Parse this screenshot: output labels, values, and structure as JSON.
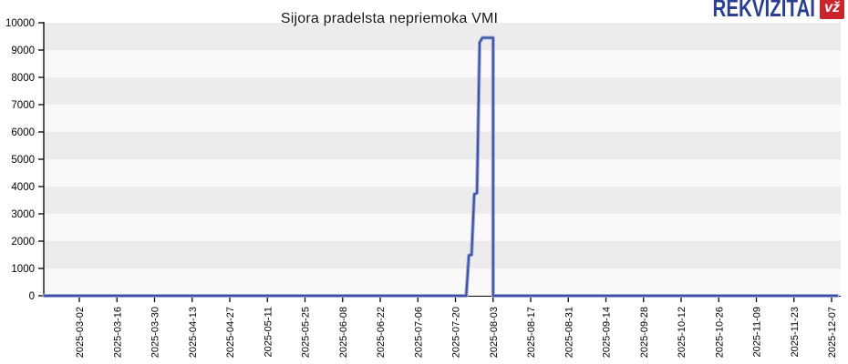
{
  "logo": {
    "text": "REKVIZITAI",
    "badge": "vž",
    "text_color": "#2a3f93",
    "badge_bg": "#c9252b",
    "badge_text_color": "#ffffff"
  },
  "chart_data": {
    "type": "line",
    "title": "Sijora pradelsta nepriemoka VMI",
    "xlabel": "",
    "ylabel": "",
    "ylim": [
      0,
      10000
    ],
    "y_ticks": [
      0,
      1000,
      2000,
      3000,
      4000,
      5000,
      6000,
      7000,
      8000,
      9000,
      10000
    ],
    "x_tick_labels": [
      "2025-03-02",
      "2025-03-16",
      "2025-03-30",
      "2025-04-13",
      "2025-04-27",
      "2025-05-11",
      "2025-05-25",
      "2025-06-08",
      "2025-06-22",
      "2025-07-06",
      "2025-07-20",
      "2025-08-03",
      "2025-08-17",
      "2025-08-31",
      "2025-09-14",
      "2025-09-28",
      "2025-10-12",
      "2025-10-26",
      "2025-11-09",
      "2025-11-23",
      "2025-12-07"
    ],
    "x_tick_interval_days": 14,
    "grid": "banded",
    "band_color_light": "#f9f9f9",
    "band_color_dark": "#ececec",
    "axis_color": "#000000",
    "tick_label_color": "#000000",
    "legend": "none",
    "series": [
      {
        "color": "#3d50a2",
        "halo_color": "#9aa6d6",
        "points": [
          [
            "2025-02-17",
            0
          ],
          [
            "2025-07-24",
            0
          ],
          [
            "2025-07-25",
            1480
          ],
          [
            "2025-07-26",
            1500
          ],
          [
            "2025-07-27",
            3720
          ],
          [
            "2025-07-28",
            3760
          ],
          [
            "2025-07-29",
            9280
          ],
          [
            "2025-07-30",
            9450
          ],
          [
            "2025-08-02",
            9450
          ],
          [
            "2025-08-03",
            9450
          ],
          [
            "2025-08-03",
            0
          ],
          [
            "2025-12-09",
            0
          ]
        ]
      }
    ]
  }
}
